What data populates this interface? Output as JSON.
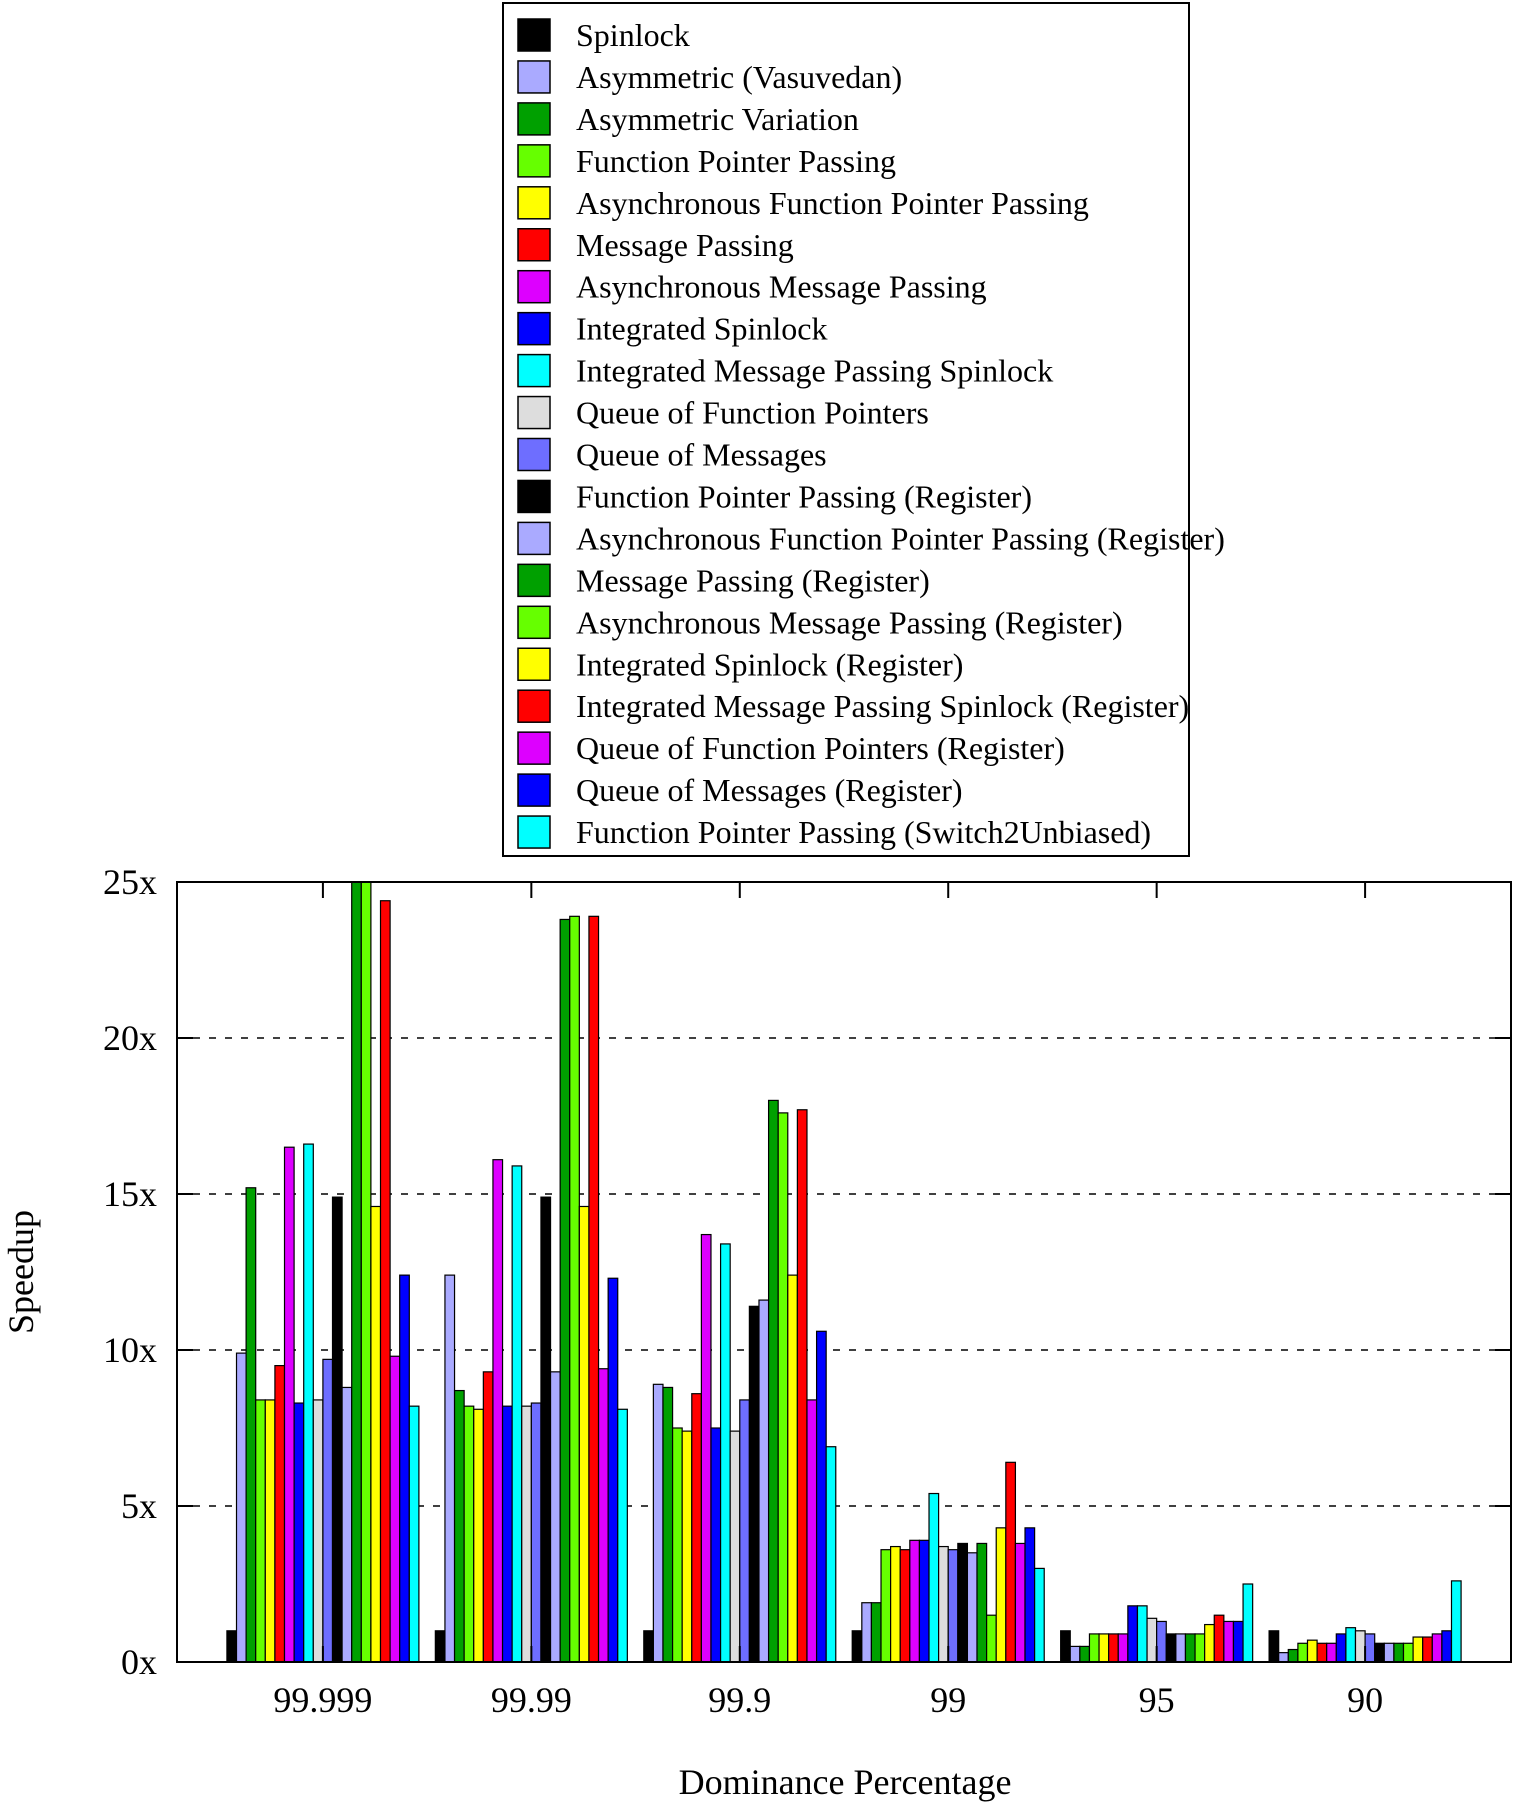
{
  "chart_data": {
    "type": "bar",
    "title": "",
    "xlabel": "Dominance Percentage",
    "ylabel": "Speedup",
    "ylim": [
      0,
      25
    ],
    "yticks": [
      0,
      5,
      10,
      15,
      20,
      25
    ],
    "ytick_labels": [
      "0x",
      "5x",
      "10x",
      "15x",
      "20x",
      "25x"
    ],
    "grid": "horizontal-dashed",
    "legend_position": "top",
    "categories": [
      "99.999",
      "99.99",
      "99.9",
      "99",
      "95",
      "90"
    ],
    "series": [
      {
        "name": "Spinlock",
        "color": "#000000",
        "values": [
          1.0,
          1.0,
          1.0,
          1.0,
          1.0,
          1.0
        ]
      },
      {
        "name": "Asymmetric (Vasuvedan)",
        "color": "#aaaaff",
        "values": [
          9.9,
          12.4,
          8.9,
          1.9,
          0.5,
          0.3
        ]
      },
      {
        "name": "Asymmetric Variation",
        "color": "#00a000",
        "values": [
          15.2,
          8.7,
          8.8,
          1.9,
          0.5,
          0.4
        ]
      },
      {
        "name": "Function Pointer Passing",
        "color": "#66ff00",
        "values": [
          8.4,
          8.2,
          7.5,
          3.6,
          0.9,
          0.6
        ]
      },
      {
        "name": "Asynchronous Function Pointer Passing",
        "color": "#ffff00",
        "values": [
          8.4,
          8.1,
          7.4,
          3.7,
          0.9,
          0.7
        ]
      },
      {
        "name": "Message Passing",
        "color": "#ff0000",
        "values": [
          9.5,
          9.3,
          8.6,
          3.6,
          0.9,
          0.6
        ]
      },
      {
        "name": "Asynchronous Message Passing",
        "color": "#dd00ff",
        "values": [
          16.5,
          16.1,
          13.7,
          3.9,
          0.9,
          0.6
        ]
      },
      {
        "name": "Integrated Spinlock",
        "color": "#0000ff",
        "values": [
          8.3,
          8.2,
          7.5,
          3.9,
          1.8,
          0.9
        ]
      },
      {
        "name": "Integrated Message Passing Spinlock",
        "color": "#00ffff",
        "values": [
          16.6,
          15.9,
          13.4,
          5.4,
          1.8,
          1.1
        ]
      },
      {
        "name": "Queue of Function Pointers",
        "color": "#dddddd",
        "values": [
          8.4,
          8.2,
          7.4,
          3.7,
          1.4,
          1.0
        ]
      },
      {
        "name": "Queue of Messages",
        "color": "#6e6eff",
        "values": [
          9.7,
          8.3,
          8.4,
          3.6,
          1.3,
          0.9
        ]
      },
      {
        "name": "Function Pointer Passing (Register)",
        "color": "#000000",
        "values": [
          14.9,
          14.9,
          11.4,
          3.8,
          0.9,
          0.6
        ]
      },
      {
        "name": "Asynchronous Function Pointer Passing (Register)",
        "color": "#aaaaff",
        "values": [
          8.8,
          9.3,
          11.6,
          3.5,
          0.9,
          0.6
        ]
      },
      {
        "name": "Message Passing (Register)",
        "color": "#00a000",
        "values": [
          25.0,
          23.8,
          18.0,
          3.8,
          0.9,
          0.6
        ]
      },
      {
        "name": "Asynchronous Message Passing (Register)",
        "color": "#66ff00",
        "values": [
          25.0,
          23.9,
          17.6,
          1.5,
          0.9,
          0.6
        ]
      },
      {
        "name": "Integrated Spinlock (Register)",
        "color": "#ffff00",
        "values": [
          14.6,
          14.6,
          12.4,
          4.3,
          1.2,
          0.8
        ]
      },
      {
        "name": "Integrated Message Passing Spinlock (Register)",
        "color": "#ff0000",
        "values": [
          24.4,
          23.9,
          17.7,
          6.4,
          1.5,
          0.8
        ]
      },
      {
        "name": "Queue of Function Pointers (Register)",
        "color": "#dd00ff",
        "values": [
          9.8,
          9.4,
          8.4,
          3.8,
          1.3,
          0.9
        ]
      },
      {
        "name": "Queue of Messages (Register)",
        "color": "#0000ff",
        "values": [
          12.4,
          12.3,
          10.6,
          4.3,
          1.3,
          1.0
        ]
      },
      {
        "name": "Function Pointer Passing (Switch2Unbiased)",
        "color": "#00ffff",
        "values": [
          8.2,
          8.1,
          6.9,
          3.0,
          2.5,
          2.6
        ]
      }
    ]
  }
}
